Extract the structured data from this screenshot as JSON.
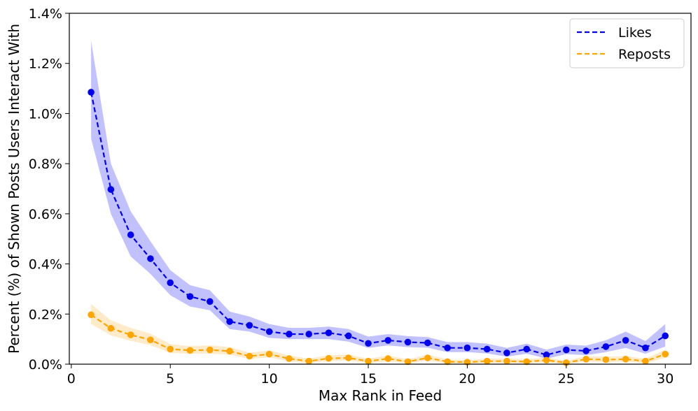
{
  "chart_data": {
    "type": "line",
    "title": "",
    "xlabel": "Max Rank in Feed",
    "ylabel": "Percent (%) of Shown Posts Users Interact With",
    "xlim": [
      -0.1,
      31.3
    ],
    "ylim": [
      0,
      1.4
    ],
    "x_ticks": [
      0,
      5,
      10,
      15,
      20,
      25,
      30
    ],
    "x_tick_labels": [
      "0",
      "5",
      "10",
      "15",
      "20",
      "25",
      "30"
    ],
    "y_ticks": [
      0,
      0.2,
      0.4,
      0.6,
      0.8,
      1.0,
      1.2,
      1.4
    ],
    "y_tick_labels": [
      "0.0%",
      "0.2%",
      "0.4%",
      "0.6%",
      "0.8%",
      "1.0%",
      "1.2%",
      "1.4%"
    ],
    "grid": false,
    "legend_position": "top-right",
    "x": [
      1,
      2,
      3,
      4,
      5,
      6,
      7,
      8,
      9,
      10,
      11,
      12,
      13,
      14,
      15,
      16,
      17,
      18,
      19,
      20,
      21,
      22,
      23,
      24,
      25,
      26,
      27,
      28,
      29,
      30
    ],
    "series": [
      {
        "name": "Likes",
        "color": "#0000ee",
        "band_color": "#6b6bff",
        "values": [
          1.085,
          0.697,
          0.516,
          0.421,
          0.325,
          0.27,
          0.25,
          0.17,
          0.155,
          0.13,
          0.12,
          0.12,
          0.125,
          0.113,
          0.083,
          0.095,
          0.088,
          0.085,
          0.065,
          0.065,
          0.06,
          0.045,
          0.06,
          0.037,
          0.057,
          0.053,
          0.07,
          0.095,
          0.065,
          0.113
        ],
        "lower": [
          0.9,
          0.6,
          0.43,
          0.36,
          0.275,
          0.23,
          0.215,
          0.14,
          0.13,
          0.105,
          0.1,
          0.1,
          0.1,
          0.09,
          0.065,
          0.075,
          0.068,
          0.066,
          0.048,
          0.048,
          0.043,
          0.03,
          0.042,
          0.022,
          0.04,
          0.036,
          0.048,
          0.065,
          0.042,
          0.07
        ],
        "upper": [
          1.29,
          0.8,
          0.61,
          0.49,
          0.375,
          0.315,
          0.295,
          0.21,
          0.19,
          0.16,
          0.145,
          0.145,
          0.15,
          0.14,
          0.11,
          0.12,
          0.112,
          0.108,
          0.088,
          0.088,
          0.082,
          0.065,
          0.082,
          0.058,
          0.078,
          0.074,
          0.095,
          0.13,
          0.092,
          0.16
        ]
      },
      {
        "name": "Reposts",
        "color": "#ffa500",
        "band_color": "#ffd080",
        "values": [
          0.197,
          0.143,
          0.117,
          0.097,
          0.06,
          0.055,
          0.057,
          0.052,
          0.032,
          0.04,
          0.022,
          0.012,
          0.023,
          0.025,
          0.012,
          0.022,
          0.01,
          0.025,
          0.01,
          0.008,
          0.012,
          0.012,
          0.01,
          0.016,
          0.006,
          0.02,
          0.018,
          0.02,
          0.012,
          0.04
        ],
        "lower": [
          0.16,
          0.115,
          0.093,
          0.076,
          0.045,
          0.041,
          0.042,
          0.038,
          0.021,
          0.027,
          0.012,
          0.004,
          0.013,
          0.015,
          0.004,
          0.012,
          0.003,
          0.015,
          0.003,
          0.002,
          0.004,
          0.004,
          0.003,
          0.007,
          0.001,
          0.01,
          0.008,
          0.01,
          0.004,
          0.025
        ],
        "upper": [
          0.24,
          0.175,
          0.145,
          0.122,
          0.08,
          0.072,
          0.075,
          0.068,
          0.046,
          0.055,
          0.035,
          0.022,
          0.036,
          0.038,
          0.022,
          0.034,
          0.019,
          0.038,
          0.019,
          0.016,
          0.022,
          0.022,
          0.019,
          0.027,
          0.013,
          0.032,
          0.03,
          0.032,
          0.022,
          0.058
        ]
      }
    ]
  }
}
